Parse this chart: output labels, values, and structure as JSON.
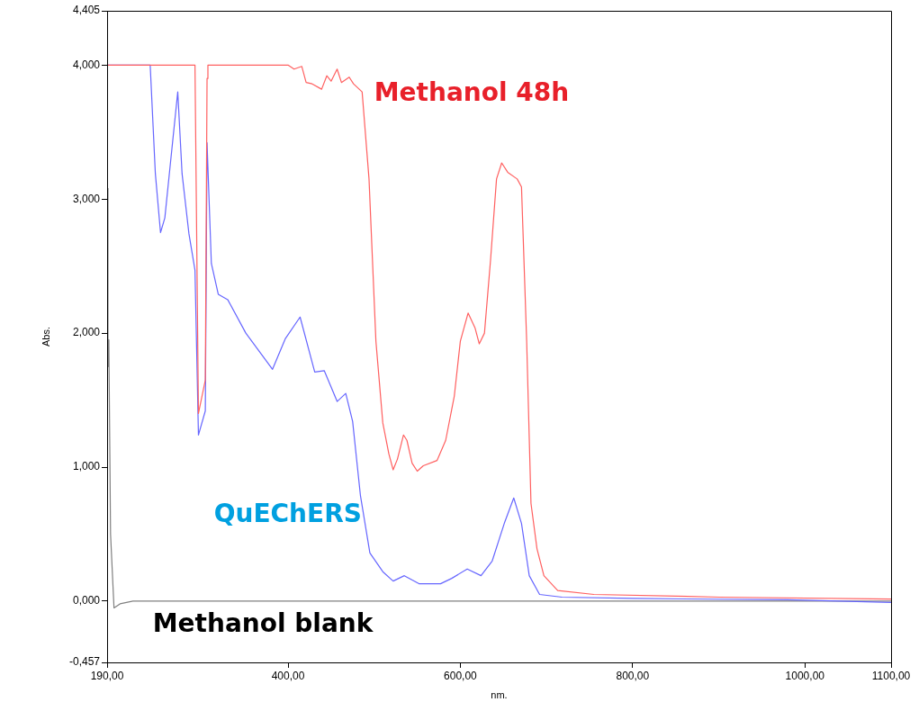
{
  "chart_data": {
    "type": "line",
    "xlabel": "nm.",
    "ylabel": "Abs.",
    "legend": false,
    "grid": false,
    "marker": "none",
    "line_style": "solid",
    "xlim": [
      190,
      1100
    ],
    "ylim": [
      -0.457,
      4.405
    ],
    "xticks": [
      {
        "value": 190,
        "label": "190,00"
      },
      {
        "value": 400,
        "label": "400,00"
      },
      {
        "value": 600,
        "label": "600,00"
      },
      {
        "value": 800,
        "label": "800,00"
      },
      {
        "value": 1000,
        "label": "1000,00"
      },
      {
        "value": 1100,
        "label": "1100,00"
      }
    ],
    "yticks": [
      {
        "value": -0.457,
        "label": "-0,457"
      },
      {
        "value": 0,
        "label": "0,000"
      },
      {
        "value": 1,
        "label": "1,000"
      },
      {
        "value": 2,
        "label": "2,000"
      },
      {
        "value": 3,
        "label": "3,000"
      },
      {
        "value": 4,
        "label": "4,000"
      },
      {
        "value": 4.405,
        "label": "4,405"
      }
    ],
    "series": [
      {
        "name": "Methanol 48h",
        "color": "#ff6060",
        "x": [
          190,
          292,
          296,
          304,
          306,
          307,
          400,
          407,
          416,
          421,
          428,
          439,
          445,
          450,
          457,
          462,
          471,
          476,
          486,
          494,
          502,
          510,
          517,
          522,
          527,
          534,
          538,
          544,
          550,
          557,
          573,
          583,
          593,
          600,
          609,
          617,
          622,
          628,
          635,
          642,
          648,
          655,
          666,
          671,
          677,
          682,
          689,
          697,
          713,
          755,
          901,
          1100
        ],
        "values": [
          4,
          4,
          1.4,
          1.65,
          3.9,
          4,
          4,
          3.97,
          3.99,
          3.87,
          3.86,
          3.82,
          3.92,
          3.88,
          3.97,
          3.87,
          3.91,
          3.86,
          3.8,
          3.15,
          1.94,
          1.33,
          1.1,
          0.98,
          1.06,
          1.24,
          1.2,
          1.03,
          0.97,
          1.01,
          1.05,
          1.2,
          1.53,
          1.94,
          2.15,
          2.04,
          1.92,
          2,
          2.54,
          3.15,
          3.27,
          3.2,
          3.15,
          3.09,
          1.94,
          0.73,
          0.39,
          0.19,
          0.08,
          0.05,
          0.03,
          0.015
        ]
      },
      {
        "name": "QuEChERS",
        "color": "#6666ff",
        "x": [
          190,
          240,
          246,
          252,
          257,
          264,
          272,
          277,
          285,
          292,
          296,
          304,
          306,
          311,
          319,
          330,
          351,
          382,
          397,
          414,
          431,
          442,
          457,
          467,
          475,
          484,
          495,
          510,
          522,
          535,
          552,
          577,
          590,
          608,
          624,
          637,
          651,
          662,
          671,
          680,
          692,
          718,
          800,
          980,
          1100
        ],
        "values": [
          4,
          4,
          3.19,
          2.75,
          2.86,
          3.3,
          3.8,
          3.19,
          2.74,
          2.47,
          1.24,
          1.42,
          3.42,
          2.52,
          2.29,
          2.25,
          2,
          1.73,
          1.96,
          2.12,
          1.71,
          1.72,
          1.49,
          1.55,
          1.34,
          0.79,
          0.36,
          0.22,
          0.15,
          0.19,
          0.13,
          0.13,
          0.17,
          0.24,
          0.19,
          0.3,
          0.58,
          0.77,
          0.58,
          0.19,
          0.05,
          0.03,
          0.02,
          0.01,
          -0.01
        ]
      },
      {
        "name": "Methanol blank",
        "color": "#808080",
        "x": [
          190,
          191,
          192,
          194,
          198,
          205,
          220,
          1100
        ],
        "values": [
          3.08,
          1.75,
          1.95,
          0.5,
          -0.05,
          -0.02,
          0,
          0
        ]
      }
    ]
  }
}
